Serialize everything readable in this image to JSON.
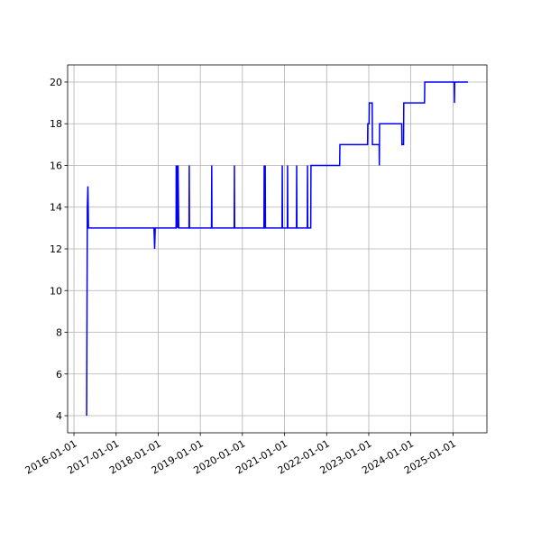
{
  "chart_data": {
    "type": "line",
    "color": "#0000ff",
    "grid": true,
    "x": [
      "2016-04-20",
      "2016-04-26",
      "2016-05-01",
      "2016-05-06",
      "2017-11-25",
      "2017-12-01",
      "2017-12-06",
      "2018-06-05",
      "2018-06-06",
      "2018-06-10",
      "2018-06-14",
      "2018-06-19",
      "2018-06-22",
      "2018-06-28",
      "2018-09-25",
      "2018-09-27",
      "2018-09-29",
      "2019-04-08",
      "2019-04-10",
      "2019-04-12",
      "2019-10-22",
      "2019-10-24",
      "2019-10-26",
      "2020-07-06",
      "2020-07-08",
      "2020-07-10",
      "2020-07-15",
      "2020-07-17",
      "2020-07-19",
      "2020-12-10",
      "2020-12-12",
      "2020-12-14",
      "2021-01-25",
      "2021-01-27",
      "2021-01-29",
      "2021-04-14",
      "2021-04-16",
      "2021-04-18",
      "2021-07-17",
      "2021-07-19",
      "2021-07-21",
      "2021-08-16",
      "2021-08-18",
      "2022-04-24",
      "2022-04-26",
      "2022-12-22",
      "2022-12-24",
      "2023-01-04",
      "2023-01-06",
      "2023-01-31",
      "2023-02-02",
      "2023-04-01",
      "2023-04-03",
      "2023-04-05",
      "2023-10-14",
      "2023-10-16",
      "2023-10-30",
      "2023-11-01",
      "2024-04-29",
      "2024-05-01",
      "2025-01-12",
      "2025-01-14",
      "2025-01-16",
      "2025-05-10"
    ],
    "values": [
      4,
      14,
      15,
      13,
      13,
      12,
      13,
      13,
      16,
      13,
      16,
      13,
      16,
      13,
      13,
      16,
      13,
      13,
      16,
      13,
      13,
      16,
      13,
      13,
      16,
      13,
      13,
      16,
      13,
      13,
      16,
      13,
      13,
      16,
      13,
      13,
      16,
      13,
      13,
      16,
      13,
      13,
      16,
      16,
      17,
      17,
      18,
      18,
      19,
      19,
      17,
      17,
      16,
      18,
      18,
      17,
      17,
      19,
      19,
      20,
      20,
      19,
      20,
      20
    ],
    "xlim": [
      "2015-11-07",
      "2025-10-22"
    ],
    "xticks": [
      "2016-01-01",
      "2017-01-01",
      "2018-01-01",
      "2019-01-01",
      "2020-01-01",
      "2021-01-01",
      "2022-01-01",
      "2023-01-01",
      "2024-01-01",
      "2025-01-01"
    ],
    "ylim": [
      3.18,
      20.82
    ],
    "yticks": [
      4,
      6,
      8,
      10,
      12,
      14,
      16,
      18,
      20
    ]
  }
}
